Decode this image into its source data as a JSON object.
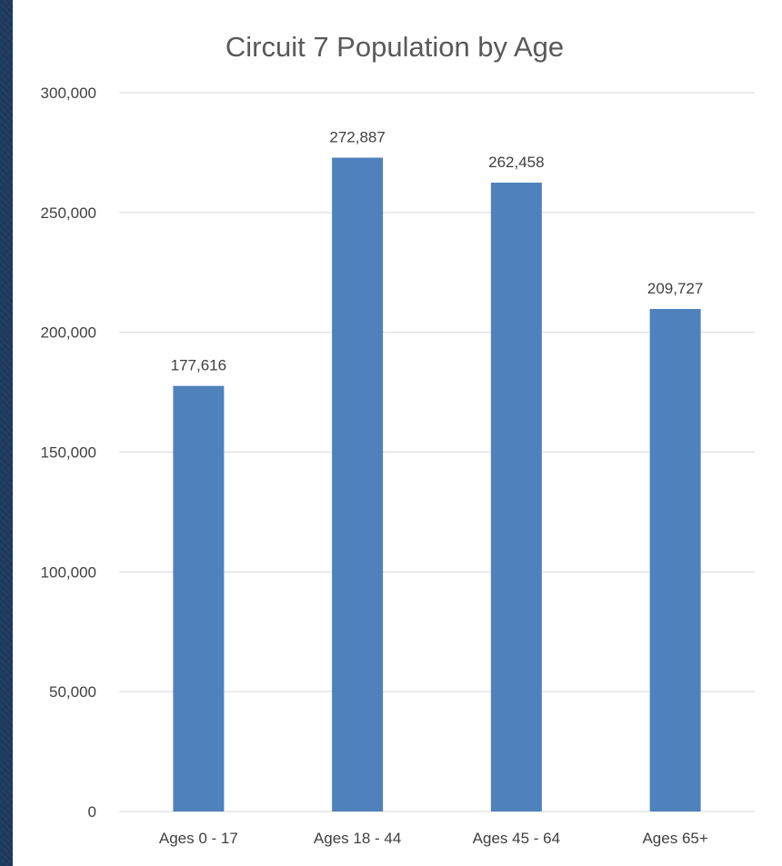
{
  "colors": {
    "bar": "#4f81bd",
    "background": "#1f3a60",
    "gridline": "#d9d9d9",
    "text": "#404040",
    "title": "#595959"
  },
  "chart_data": {
    "type": "bar",
    "title": "Circuit 7 Population by Age",
    "xlabel": "",
    "ylabel": "",
    "categories": [
      "Ages 0 - 17",
      "Ages 18 - 44",
      "Ages 45 - 64",
      "Ages 65+"
    ],
    "values": [
      177616,
      272887,
      262458,
      209727
    ],
    "data_labels": [
      "177,616",
      "272,887",
      "262,458",
      "209,727"
    ],
    "ylim": [
      0,
      300000
    ],
    "yticks": [
      0,
      50000,
      100000,
      150000,
      200000,
      250000,
      300000
    ],
    "ytick_labels": [
      "0",
      "50,000",
      "100,000",
      "150,000",
      "200,000",
      "250,000",
      "300,000"
    ],
    "grid": true,
    "legend": "none"
  }
}
